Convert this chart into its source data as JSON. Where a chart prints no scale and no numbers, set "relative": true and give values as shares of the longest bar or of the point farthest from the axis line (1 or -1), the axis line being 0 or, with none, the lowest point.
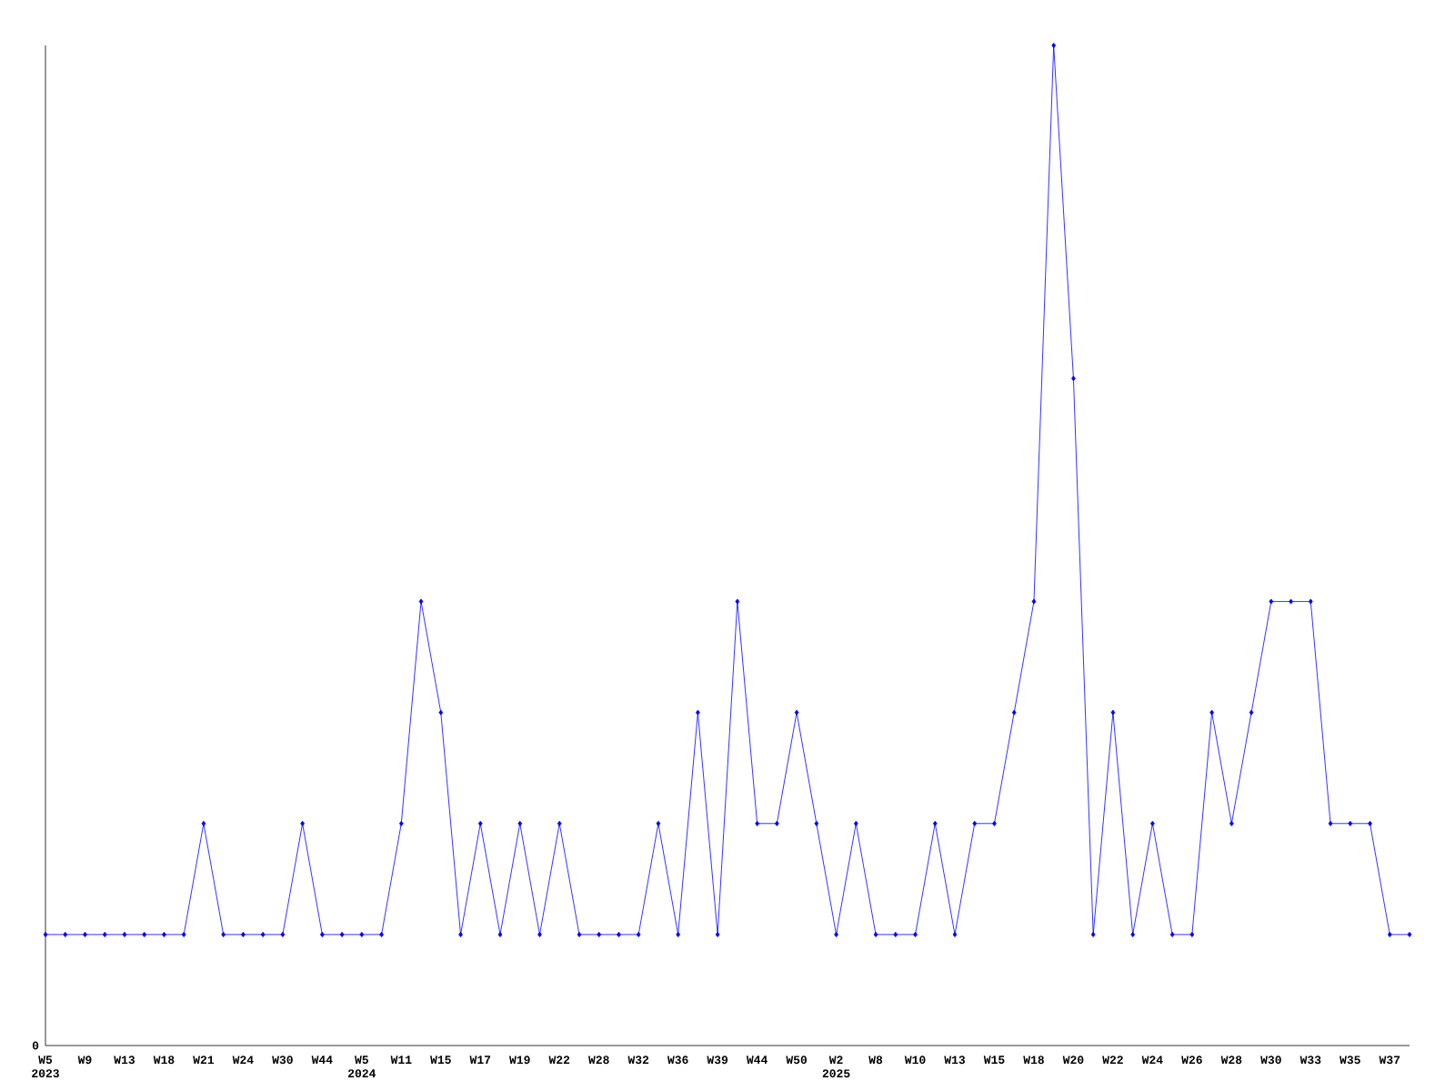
{
  "chart_data": {
    "type": "line",
    "relative": true,
    "color": "#0000ff",
    "marker": "diamond",
    "annotations": [
      "0"
    ],
    "categories": [
      "W5 2023",
      null,
      "W9",
      null,
      "W13",
      null,
      "W18",
      null,
      "W21",
      null,
      "W24",
      null,
      "W30",
      null,
      "W44",
      null,
      "W5 2024",
      null,
      "W11",
      null,
      "W15",
      null,
      "W17",
      null,
      "W19",
      null,
      "W22",
      null,
      "W28",
      null,
      "W32",
      null,
      "W36",
      null,
      "W39",
      null,
      "W44",
      null,
      "W50",
      null,
      "W2 2025",
      null,
      "W8",
      null,
      "W10",
      null,
      "W13",
      null,
      "W15",
      null,
      "W18",
      null,
      "W20",
      null,
      "W22",
      null,
      "W24",
      null,
      "W26",
      null,
      "W28",
      null,
      "W30",
      null,
      "W33",
      null,
      "W35",
      null,
      "W37",
      null
    ],
    "values": [
      0.111,
      0.111,
      0.111,
      0.111,
      0.111,
      0.111,
      0.111,
      0.111,
      0.222,
      0.111,
      0.111,
      0.111,
      0.111,
      0.222,
      0.111,
      0.111,
      0.111,
      0.111,
      0.222,
      0.444,
      0.333,
      0.111,
      0.222,
      0.111,
      0.222,
      0.111,
      0.222,
      0.111,
      0.111,
      0.111,
      0.111,
      0.222,
      0.111,
      0.333,
      0.111,
      0.444,
      0.222,
      0.222,
      0.333,
      0.222,
      0.111,
      0.222,
      0.111,
      0.111,
      0.111,
      0.222,
      0.111,
      0.222,
      0.222,
      0.333,
      0.444,
      1,
      0.667,
      0.111,
      0.333,
      0.111,
      0.222,
      0.111,
      0.111,
      0.333,
      0.222,
      0.333,
      0.444,
      0.444,
      0.444,
      0.222,
      0.222,
      0.222,
      0.111,
      0.111
    ]
  }
}
